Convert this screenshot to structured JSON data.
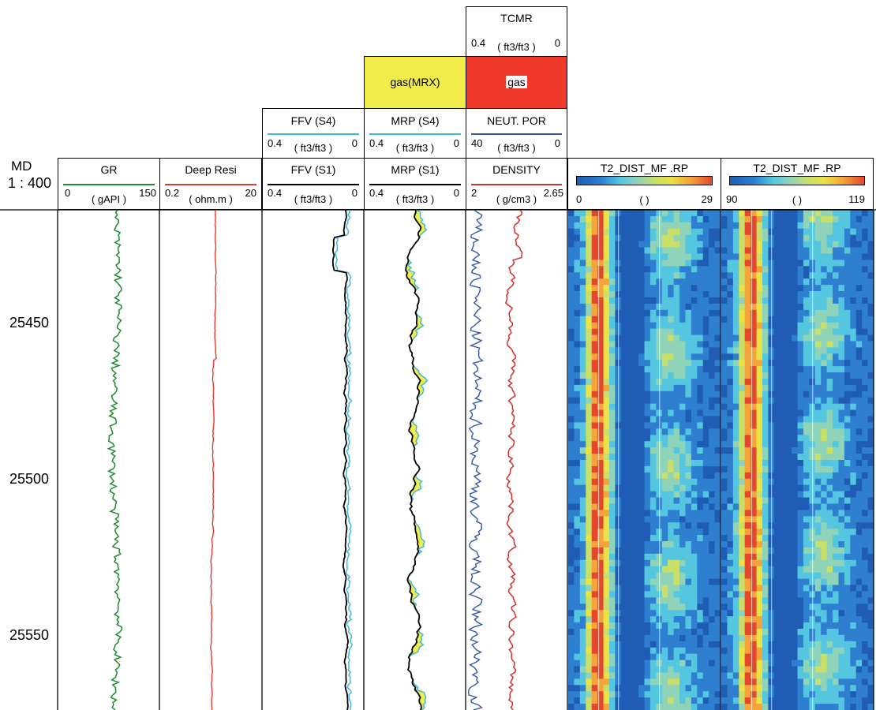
{
  "depth_header": {
    "md": "MD",
    "scale": "1 : 400"
  },
  "chart_data": {
    "type": "well-log",
    "depth_range": [
      25414,
      25574
    ],
    "depth_ticks": [
      25450,
      25500,
      25550
    ],
    "tracks": [
      {
        "id": "gr",
        "curves": [
          {
            "name": "GR",
            "color": "#1e8a2e",
            "min": "0",
            "max": "150",
            "unit": "( gAPI )"
          }
        ]
      },
      {
        "id": "res",
        "curves": [
          {
            "name": "Deep Resi",
            "color": "#e23b2e",
            "min": "0.2",
            "max": "20",
            "unit": "( ohm.m )"
          }
        ]
      },
      {
        "id": "ffv",
        "curves": [
          {
            "name": "FFV (S1)",
            "color": "#000000",
            "min": "0.4",
            "max": "0",
            "unit": "( ft3/ft3 )"
          },
          {
            "name": "FFV (S4)",
            "color": "#3fb8e0",
            "min": "0.4",
            "max": "0",
            "unit": "( ft3/ft3 )"
          }
        ]
      },
      {
        "id": "mrp",
        "fill_label": "gas(MRX)",
        "fill_color": "#f0ec4a",
        "curves": [
          {
            "name": "MRP (S1)",
            "color": "#000000",
            "min": "0.4",
            "max": "0",
            "unit": "( ft3/ft3 )"
          },
          {
            "name": "MRP (S4)",
            "color": "#3fb8e0",
            "min": "0.4",
            "max": "0",
            "unit": "( ft3/ft3 )"
          }
        ]
      },
      {
        "id": "poro",
        "title_top": "TCMR",
        "title_top_min": "0.4",
        "title_top_max": "0",
        "title_top_unit": "( ft3/ft3 )",
        "fill_label": "gas",
        "fill_color": "#ef3a2b",
        "curves": [
          {
            "name": "DENSITY",
            "color": "#d42f2a",
            "min": "2",
            "max": "2.65",
            "unit": "( g/cm3 )"
          },
          {
            "name": "NEUT. POR",
            "color": "#3458a8",
            "min": "40",
            "max": "0",
            "unit": "( ft3/ft3 )"
          }
        ]
      },
      {
        "id": "t2a",
        "image": "T2_DIST_MF .RP",
        "min": "0",
        "max": "29",
        "unit": "(     )"
      },
      {
        "id": "t2b",
        "image": "T2_DIST_MF .RP",
        "min": "90",
        "max": "119",
        "unit": "(     )"
      }
    ],
    "grid": true
  }
}
